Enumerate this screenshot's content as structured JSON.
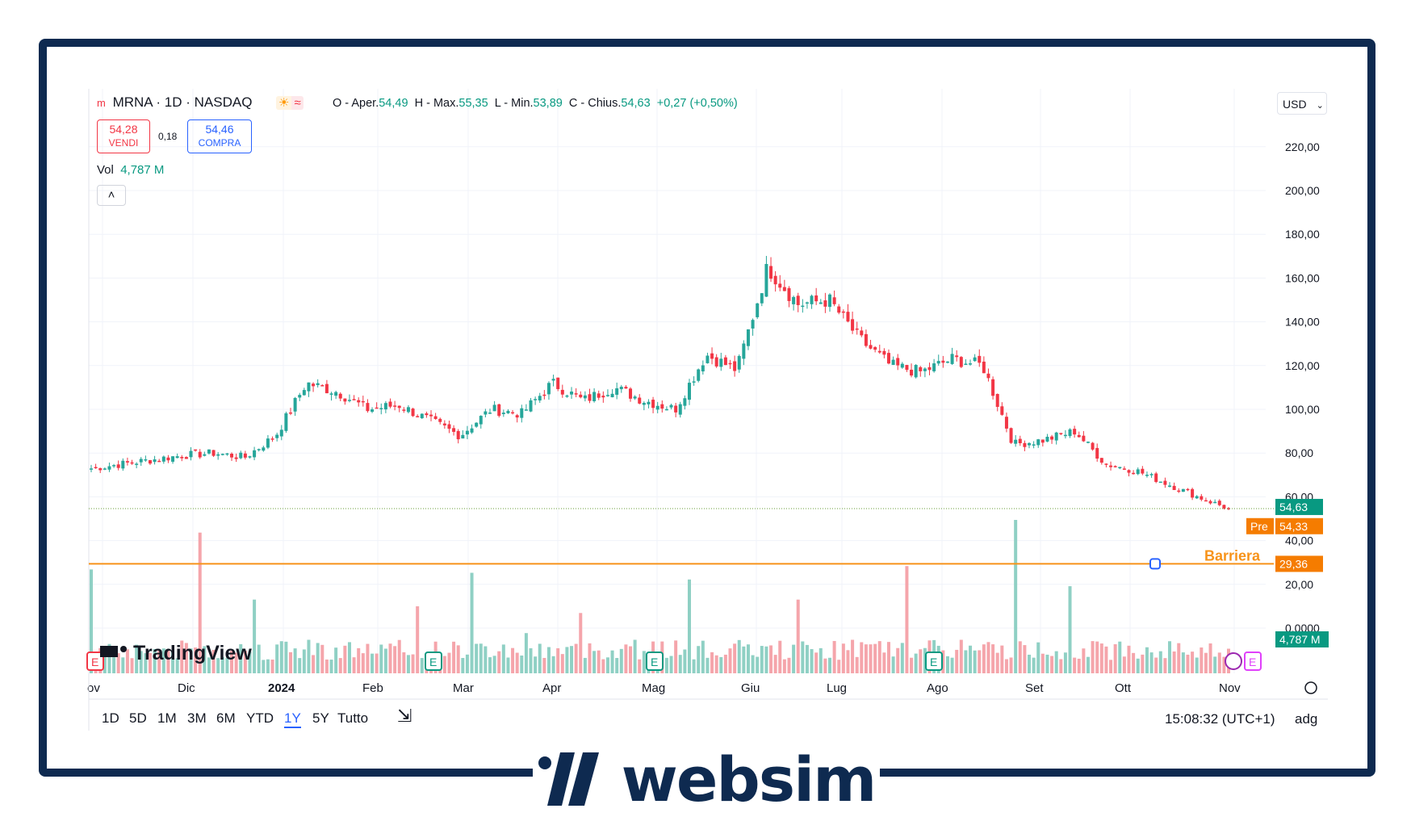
{
  "header": {
    "symbol": "MRNA · 1D · NASDAQ",
    "ohlc_prefix_o": "O - Aper.",
    "open": "54,49",
    "ohlc_prefix_h": "H - Max.",
    "high": "55,35",
    "ohlc_prefix_l": "L - Min.",
    "low": "53,89",
    "ohlc_prefix_c": "C - Chius.",
    "close": "54,63",
    "change": "+0,27 (+0,50%)",
    "currency": "USD"
  },
  "trade": {
    "sell_price": "54,28",
    "sell_label": "VENDI",
    "spread": "0,18",
    "buy_price": "54,46",
    "buy_label": "COMPRA"
  },
  "volume": {
    "label": "Vol",
    "value": "4,787 M"
  },
  "price_axis": {
    "ticks": [
      "220,00",
      "200,00",
      "180,00",
      "160,00",
      "140,00",
      "120,00",
      "100,00",
      "80,00",
      "60,00",
      "40,00",
      "20,00",
      "0,0000"
    ],
    "last_price": "54,63",
    "pre_label": "Pre",
    "pre_price": "54,33",
    "barrier_label": "Barriera",
    "barrier_price": "29,36",
    "volume_label": "4,787 M"
  },
  "time_axis": [
    "ov",
    "Dic",
    "2024",
    "Feb",
    "Mar",
    "Apr",
    "Mag",
    "Giu",
    "Lug",
    "Ago",
    "Set",
    "Ott",
    "Nov"
  ],
  "toolbar": {
    "ranges": [
      "1D",
      "5D",
      "1M",
      "3M",
      "6M",
      "YTD",
      "1Y",
      "5Y",
      "Tutto"
    ],
    "active_range": "1Y",
    "clock": "15:08:32 (UTC+1)",
    "adj": "adg"
  },
  "brand": {
    "tradingview": "TradingView",
    "websim": "websim"
  },
  "colors": {
    "up": "#26a69a",
    "down": "#f23645",
    "barrier": "#f7931a",
    "frame": "#0e2a50",
    "pre": "#f57c00"
  },
  "chart_data": {
    "type": "candlestick",
    "x": [
      "Nov",
      "Nov",
      "Nov",
      "Dic",
      "Dic",
      "Dic",
      "Dic",
      "2024",
      "Gen",
      "Gen",
      "Feb",
      "Feb",
      "Feb",
      "Mar",
      "Mar",
      "Mar",
      "Apr",
      "Apr",
      "Apr",
      "Mag",
      "Mag",
      "Mag",
      "Giu",
      "Giu",
      "Giu",
      "Lug",
      "Lug",
      "Lug",
      "Ago",
      "Ago",
      "Ago",
      "Set",
      "Set",
      "Set",
      "Ott",
      "Ott",
      "Ott",
      "Nov"
    ],
    "close": [
      73,
      75,
      77,
      79,
      80,
      78,
      88,
      112,
      108,
      100,
      102,
      95,
      88,
      100,
      98,
      112,
      104,
      110,
      104,
      100,
      125,
      118,
      165,
      148,
      150,
      132,
      120,
      117,
      123,
      120,
      84,
      86,
      90,
      75,
      72,
      66,
      60,
      54.63
    ],
    "volume_peaks_m": [
      31,
      6,
      42,
      22,
      10,
      6,
      20,
      30,
      12,
      18,
      10,
      28,
      8,
      22,
      10,
      32,
      10,
      47,
      26,
      5,
      9,
      6
    ],
    "ylim": [
      0,
      230
    ],
    "barrier": 29.36,
    "last": 54.63,
    "pre": 54.33
  }
}
